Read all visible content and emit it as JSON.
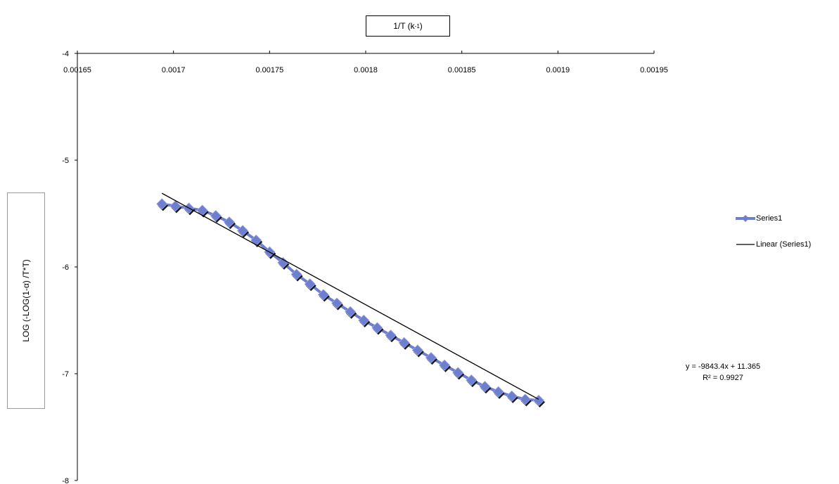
{
  "chart_data": {
    "type": "scatter",
    "xlabel": "1/T  (k",
    "xlabel_sup": "-1",
    "xlabel_close": ")",
    "ylabel": "LOG (-LOG(1-α) /T*T)",
    "xlim": [
      0.00165,
      0.00195
    ],
    "ylim": [
      -8,
      -4
    ],
    "x_axis_position": "top",
    "x_ticks": [
      "0.00165",
      "0.0017",
      "0.00175",
      "0.0018",
      "0.00185",
      "0.0019",
      "0.00195"
    ],
    "y_ticks": [
      "-4",
      "-5",
      "-6",
      "-7",
      "-8"
    ],
    "grid": false,
    "legend_position": "right",
    "series": [
      {
        "name": "Series1",
        "color": "#6f7fcf",
        "marker": "diamond",
        "x": [
          0.001694,
          0.001701,
          0.001708,
          0.001715,
          0.001722,
          0.001729,
          0.001736,
          0.001743,
          0.00175,
          0.001757,
          0.001764,
          0.001771,
          0.001778,
          0.001785,
          0.001792,
          0.001799,
          0.001806,
          0.001813,
          0.00182,
          0.001827,
          0.001834,
          0.001841,
          0.001848,
          0.001855,
          0.001862,
          0.001869,
          0.001876,
          0.001883,
          0.00189
        ],
        "y": [
          -5.41,
          -5.43,
          -5.45,
          -5.47,
          -5.52,
          -5.58,
          -5.66,
          -5.75,
          -5.86,
          -5.96,
          -6.07,
          -6.16,
          -6.26,
          -6.34,
          -6.42,
          -6.5,
          -6.57,
          -6.64,
          -6.71,
          -6.78,
          -6.85,
          -6.92,
          -6.99,
          -7.06,
          -7.12,
          -7.17,
          -7.21,
          -7.24,
          -7.25
        ]
      },
      {
        "name": "Linear (Series1)",
        "color": "#000000",
        "type": "line",
        "x": [
          0.001694,
          0.00189
        ],
        "y": [
          -5.31,
          -7.24
        ]
      }
    ],
    "annotation": {
      "equation": "y = -9843.4x + 11.365",
      "r2": "R² = 0.9927"
    }
  }
}
